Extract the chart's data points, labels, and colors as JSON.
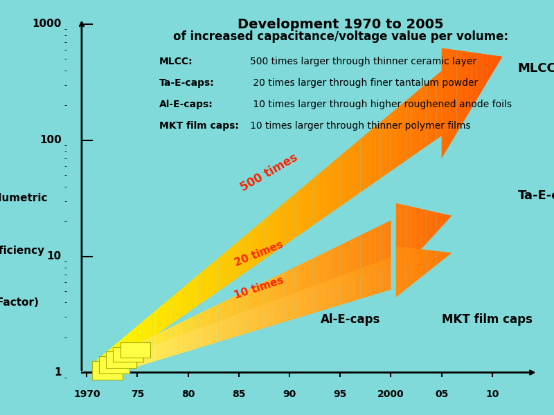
{
  "background_color": "#80DADA",
  "title_line1": "Development 1970 to 2005",
  "title_line2": "of increased capacitance/voltage value per volume:",
  "ylabel_lines": [
    "Volumetric",
    "efficiency",
    "(Factor)"
  ],
  "xlabel_ticks": [
    "1970",
    "75",
    "80",
    "85",
    "90",
    "95",
    "2000",
    "05",
    "10"
  ],
  "xlabel_tick_positions": [
    1970,
    1975,
    1980,
    1985,
    1990,
    1995,
    2000,
    2005,
    2010
  ],
  "yticks": [
    1,
    10,
    100,
    1000
  ],
  "ytick_labels": [
    "1",
    "10",
    "100",
    "1000"
  ],
  "legend_entries": [
    {
      "label": "MLCC:",
      "desc": "500 times larger through thinner ceramic layer"
    },
    {
      "label": "Ta-E-caps:",
      "desc": " 20 times larger through finer tantalum powder"
    },
    {
      "label": "Al-E-caps:",
      "desc": " 10 times larger through higher roughened anode foils"
    },
    {
      "label": "MKT film caps:",
      "desc": "10 times larger through thinner polymer films"
    }
  ],
  "arrow_labels": [
    "500 times",
    "20 times",
    "10 times"
  ],
  "arrow_label_color": "#FF2200",
  "axis_color": "#000000",
  "xlim": [
    1968,
    2015
  ],
  "ylog_min": -0.08,
  "ylog_max": 3.1,
  "figsize": [
    8.0,
    6.0
  ],
  "dpi": 100
}
